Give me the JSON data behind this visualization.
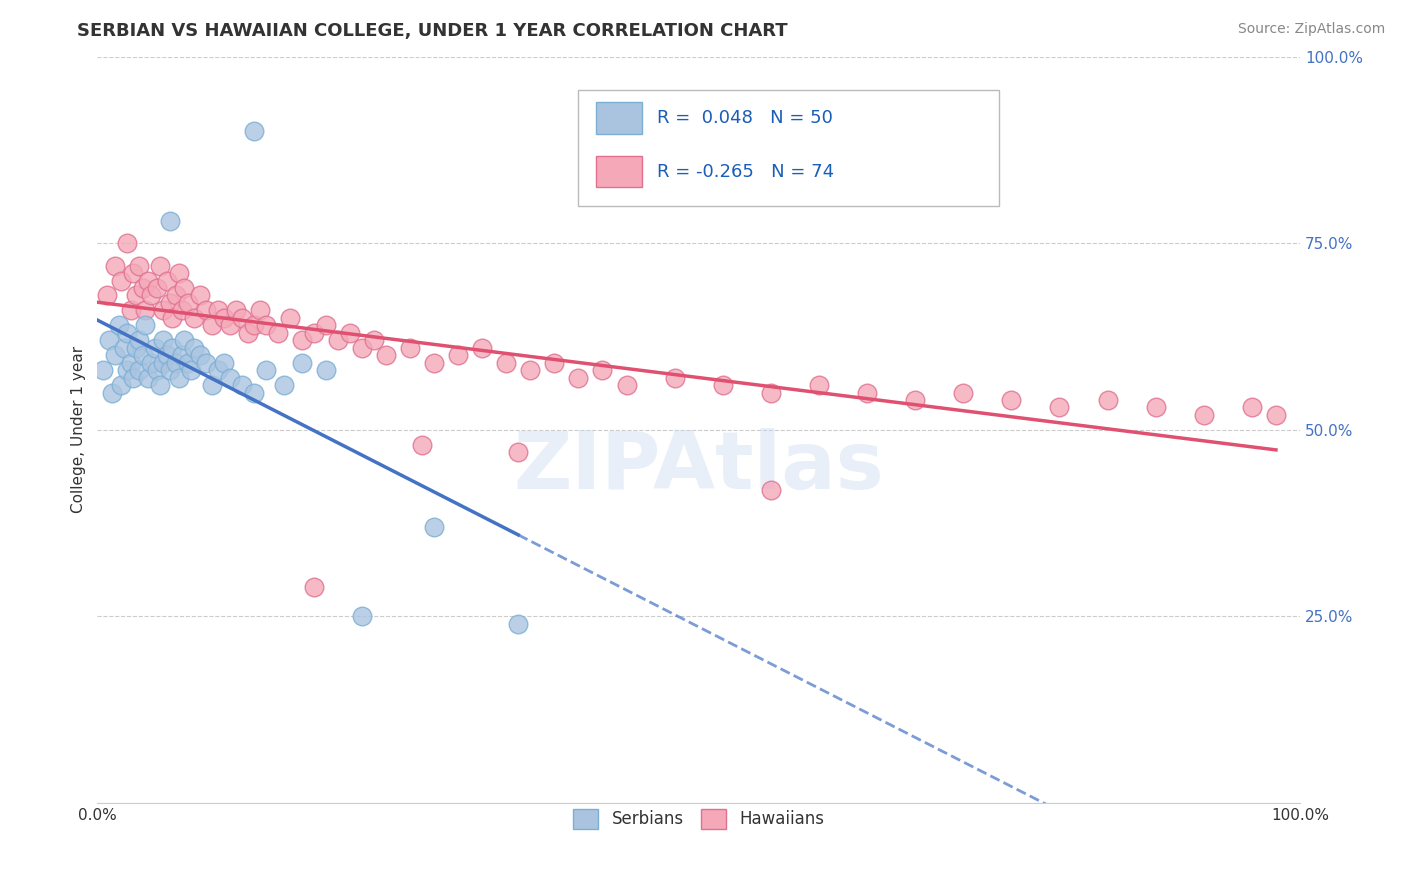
{
  "title": "SERBIAN VS HAWAIIAN COLLEGE, UNDER 1 YEAR CORRELATION CHART",
  "source_text": "Source: ZipAtlas.com",
  "ylabel": "College, Under 1 year",
  "xlim": [
    0.0,
    1.0
  ],
  "ylim": [
    0.0,
    1.0
  ],
  "xtick_positions": [
    0.0,
    0.5,
    1.0
  ],
  "xtick_labels": [
    "0.0%",
    "",
    "100.0%"
  ],
  "ytick_vals": [
    0.0,
    0.25,
    0.5,
    0.75,
    1.0
  ],
  "ytick_labels": [
    "",
    "25.0%",
    "50.0%",
    "75.0%",
    "100.0%"
  ],
  "serbian_color": "#aac4e0",
  "hawaiian_color": "#f4a8b8",
  "serbian_edge": "#7bafd4",
  "hawaiian_edge": "#e07090",
  "trend_serbian_color": "#4472c4",
  "trend_hawaiian_color": "#e05070",
  "legend_r_serbian": "0.048",
  "legend_n_serbian": "50",
  "legend_r_hawaiian": "-0.265",
  "legend_n_hawaiian": "74",
  "legend_text_color": "#1a5eb8",
  "background_color": "#ffffff",
  "grid_color": "#cccccc",
  "serbian_scatter": {
    "x": [
      0.005,
      0.01,
      0.012,
      0.015,
      0.018,
      0.02,
      0.022,
      0.025,
      0.025,
      0.028,
      0.03,
      0.032,
      0.035,
      0.035,
      0.038,
      0.04,
      0.042,
      0.045,
      0.048,
      0.05,
      0.052,
      0.055,
      0.055,
      0.058,
      0.06,
      0.062,
      0.065,
      0.068,
      0.07,
      0.072,
      0.075,
      0.078,
      0.08,
      0.085,
      0.09,
      0.095,
      0.1,
      0.105,
      0.11,
      0.12,
      0.13,
      0.14,
      0.155,
      0.17,
      0.19,
      0.22,
      0.28,
      0.35,
      0.13,
      0.06
    ],
    "y": [
      0.58,
      0.62,
      0.55,
      0.6,
      0.64,
      0.56,
      0.61,
      0.58,
      0.63,
      0.59,
      0.57,
      0.61,
      0.62,
      0.58,
      0.6,
      0.64,
      0.57,
      0.59,
      0.61,
      0.58,
      0.56,
      0.59,
      0.62,
      0.6,
      0.58,
      0.61,
      0.59,
      0.57,
      0.6,
      0.62,
      0.59,
      0.58,
      0.61,
      0.6,
      0.59,
      0.56,
      0.58,
      0.59,
      0.57,
      0.56,
      0.55,
      0.58,
      0.56,
      0.59,
      0.58,
      0.25,
      0.37,
      0.24,
      0.9,
      0.78
    ]
  },
  "hawaiian_scatter": {
    "x": [
      0.008,
      0.015,
      0.02,
      0.025,
      0.028,
      0.03,
      0.032,
      0.035,
      0.038,
      0.04,
      0.042,
      0.045,
      0.05,
      0.052,
      0.055,
      0.058,
      0.06,
      0.062,
      0.065,
      0.068,
      0.07,
      0.072,
      0.075,
      0.08,
      0.085,
      0.09,
      0.095,
      0.1,
      0.105,
      0.11,
      0.115,
      0.12,
      0.125,
      0.13,
      0.135,
      0.14,
      0.15,
      0.16,
      0.17,
      0.18,
      0.19,
      0.2,
      0.21,
      0.22,
      0.23,
      0.24,
      0.26,
      0.28,
      0.3,
      0.32,
      0.34,
      0.36,
      0.38,
      0.4,
      0.42,
      0.44,
      0.48,
      0.52,
      0.56,
      0.6,
      0.64,
      0.68,
      0.72,
      0.76,
      0.8,
      0.84,
      0.88,
      0.92,
      0.96,
      0.98,
      0.56,
      0.35,
      0.18,
      0.27
    ],
    "y": [
      0.68,
      0.72,
      0.7,
      0.75,
      0.66,
      0.71,
      0.68,
      0.72,
      0.69,
      0.66,
      0.7,
      0.68,
      0.69,
      0.72,
      0.66,
      0.7,
      0.67,
      0.65,
      0.68,
      0.71,
      0.66,
      0.69,
      0.67,
      0.65,
      0.68,
      0.66,
      0.64,
      0.66,
      0.65,
      0.64,
      0.66,
      0.65,
      0.63,
      0.64,
      0.66,
      0.64,
      0.63,
      0.65,
      0.62,
      0.63,
      0.64,
      0.62,
      0.63,
      0.61,
      0.62,
      0.6,
      0.61,
      0.59,
      0.6,
      0.61,
      0.59,
      0.58,
      0.59,
      0.57,
      0.58,
      0.56,
      0.57,
      0.56,
      0.55,
      0.56,
      0.55,
      0.54,
      0.55,
      0.54,
      0.53,
      0.54,
      0.53,
      0.52,
      0.53,
      0.52,
      0.42,
      0.47,
      0.29,
      0.48
    ]
  }
}
